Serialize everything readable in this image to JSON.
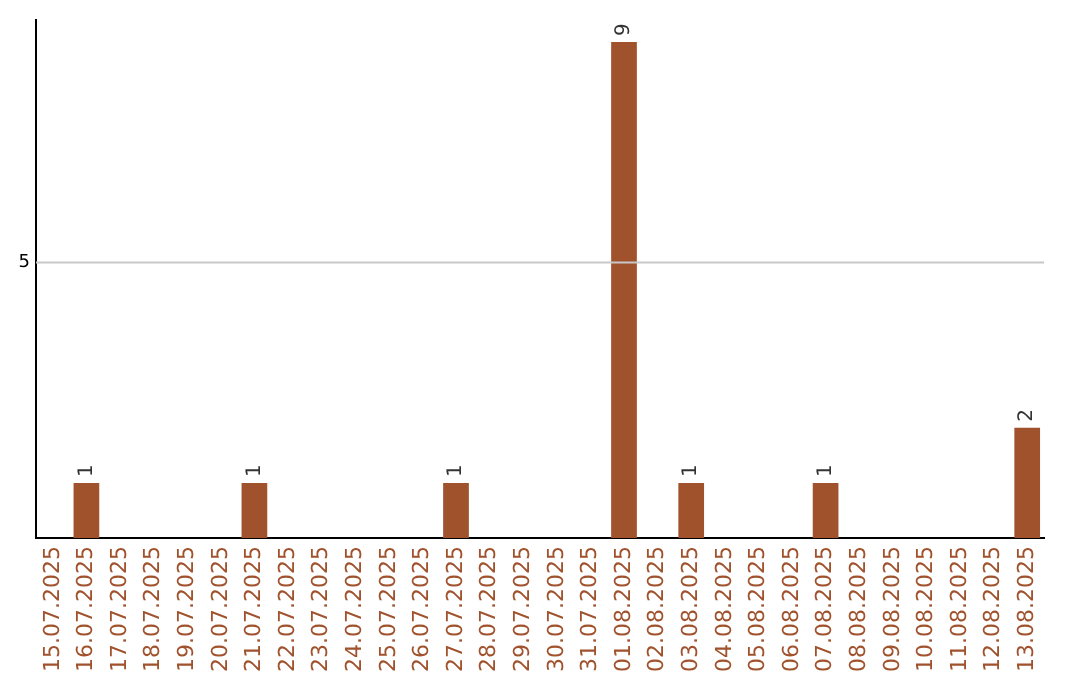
{
  "chart_data": {
    "type": "bar",
    "categories": [
      "15.07.2025",
      "16.07.2025",
      "17.07.2025",
      "18.07.2025",
      "19.07.2025",
      "20.07.2025",
      "21.07.2025",
      "22.07.2025",
      "23.07.2025",
      "24.07.2025",
      "25.07.2025",
      "26.07.2025",
      "27.07.2025",
      "28.07.2025",
      "29.07.2025",
      "30.07.2025",
      "31.07.2025",
      "01.08.2025",
      "02.08.2025",
      "03.08.2025",
      "04.08.2025",
      "05.08.2025",
      "06.08.2025",
      "07.08.2025",
      "08.08.2025",
      "09.08.2025",
      "10.08.2025",
      "11.08.2025",
      "12.08.2025",
      "13.08.2025"
    ],
    "values": [
      0,
      1,
      0,
      0,
      0,
      0,
      1,
      0,
      0,
      0,
      0,
      0,
      1,
      0,
      0,
      0,
      0,
      9,
      0,
      1,
      0,
      0,
      0,
      1,
      0,
      0,
      0,
      0,
      0,
      2
    ],
    "value_labels": [
      null,
      "1",
      null,
      null,
      null,
      null,
      "1",
      null,
      null,
      null,
      null,
      null,
      "1",
      null,
      null,
      null,
      null,
      "9",
      null,
      "1",
      null,
      null,
      null,
      "1",
      null,
      null,
      null,
      null,
      null,
      "2"
    ],
    "color": "#a0522d",
    "ylim": [
      0,
      9.4
    ],
    "ref_lines": [
      {
        "axis": "y",
        "value": 5,
        "label": "5",
        "color": "#c8c8c8"
      }
    ]
  }
}
